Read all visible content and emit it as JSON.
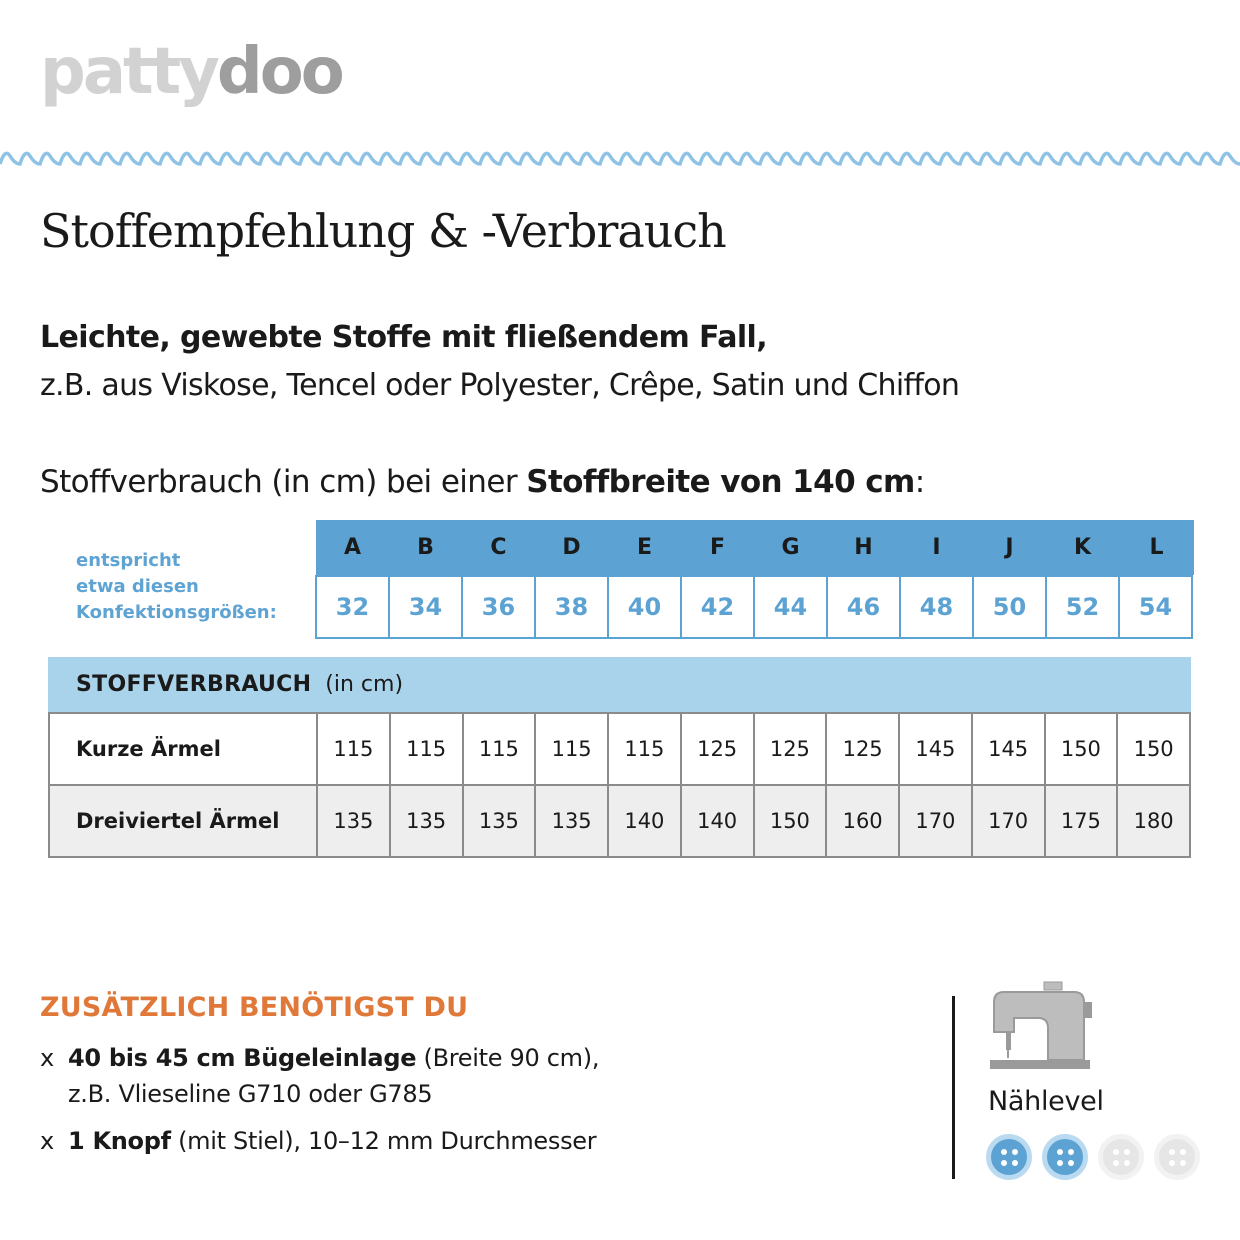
{
  "logo": {
    "part1": "patty",
    "part2": "doo"
  },
  "title": "Stoffempfehlung & -Verbrauch",
  "recommendation": {
    "bold": "Leichte, gewebte Stoffe mit fließendem Fall,",
    "normal": "z.B. aus Viskose, Tencel oder Polyester, Crêpe, Satin und Chiffon"
  },
  "usage": {
    "prefix": "Stoffverbrauch (in cm) bei einer ",
    "bold": "Stoffbreite von 140 cm",
    "suffix": ":"
  },
  "sizes": {
    "label_lines": [
      "entspricht",
      "etwa diesen",
      "Konfektionsgrößen:"
    ],
    "letters": [
      "A",
      "B",
      "C",
      "D",
      "E",
      "F",
      "G",
      "H",
      "I",
      "J",
      "K",
      "L"
    ],
    "numbers": [
      "32",
      "34",
      "36",
      "38",
      "40",
      "42",
      "44",
      "46",
      "48",
      "50",
      "52",
      "54"
    ]
  },
  "consumption": {
    "title": "STOFFVERBRAUCH",
    "unit": "(in cm)",
    "rows": [
      {
        "label": "Kurze Ärmel",
        "values": [
          "115",
          "115",
          "115",
          "115",
          "115",
          "125",
          "125",
          "125",
          "145",
          "145",
          "150",
          "150"
        ]
      },
      {
        "label": "Dreiviertel Ärmel",
        "values": [
          "135",
          "135",
          "135",
          "135",
          "140",
          "140",
          "150",
          "160",
          "170",
          "170",
          "175",
          "180"
        ]
      }
    ]
  },
  "extras": {
    "heading": "ZUSÄTZLICH BENÖTIGST DU",
    "items": [
      {
        "marker": "x",
        "bold": "40 bis 45 cm Bügeleinlage",
        "rest": " (Breite 90 cm),",
        "sub": "z.B. Vlieseline G710 oder G785"
      },
      {
        "marker": "x",
        "bold": "1 Knopf",
        "rest": " (mit Stiel), 10–12 mm Durchmesser"
      }
    ]
  },
  "level": {
    "label": "Nählevel",
    "value": 2,
    "max": 4,
    "icon": "sewing-machine-icon",
    "active_color": "#5ca3d4",
    "inactive_color": "#e6e6e6"
  },
  "colors": {
    "accent_blue": "#5ca3d4",
    "light_blue": "#a9d3ea",
    "orange": "#e0783a",
    "wave": "#8ec3e6"
  }
}
